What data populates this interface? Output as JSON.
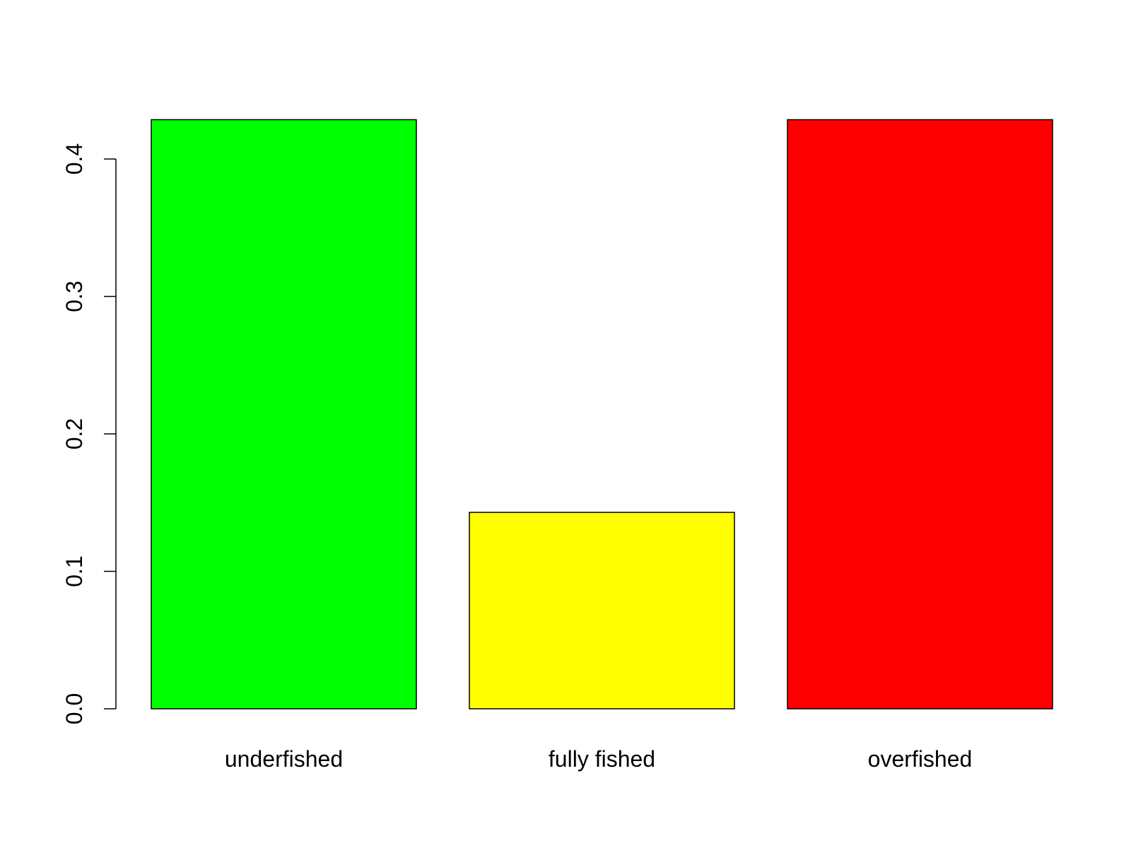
{
  "chart_data": {
    "type": "bar",
    "categories": [
      "underfished",
      "fully fished",
      "overfished"
    ],
    "values": [
      0.4286,
      0.1429,
      0.4286
    ],
    "colors": [
      "#00ff00",
      "#ffff00",
      "#ff0000"
    ],
    "yticks": [
      0.0,
      0.1,
      0.2,
      0.3,
      0.4
    ],
    "ytick_labels": [
      "0.0",
      "0.1",
      "0.2",
      "0.3",
      "0.4"
    ],
    "ylim": [
      0,
      0.4286
    ],
    "title": "",
    "xlabel": "",
    "ylabel": "",
    "grid": false,
    "legend": "none"
  }
}
